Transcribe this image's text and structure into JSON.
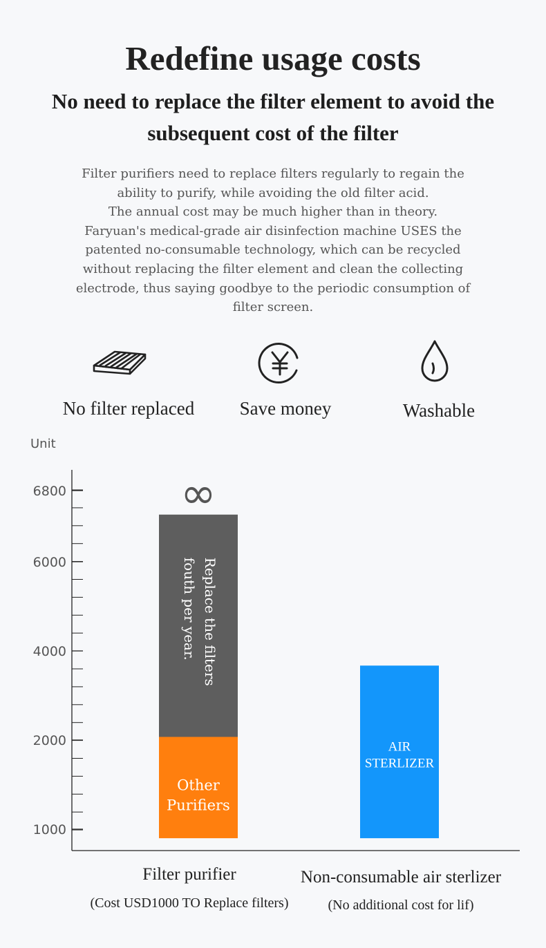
{
  "header": {
    "title": "Redefine usage costs",
    "subtitle_lines": [
      "No need to replace the filter element to avoid the",
      "subsequent cost of the filter"
    ],
    "description_lines": [
      "Filter purifiers need to replace filters regularly to regain the",
      "ability to purify, while avoiding the old filter acid.",
      "The annual cost may be much higher than in theory.",
      "Faryuan's medical-grade air disinfection machine USES the",
      "patented no-consumable technology, which can be recycled",
      "without replacing the filter element and clean the collecting",
      "electrode, thus saying goodbye to the periodic consumption of",
      "filter screen."
    ]
  },
  "features": [
    {
      "label": "No filter replaced",
      "icon": "filter-panel-icon"
    },
    {
      "label": "Save money",
      "icon": "yen-coin-icon"
    },
    {
      "label": "Washable",
      "icon": "water-drop-icon"
    }
  ],
  "chart_data": {
    "type": "bar",
    "ylabel": "Unit",
    "ytick_labels": [
      "1000",
      "2000",
      "4000",
      "6000",
      "6800"
    ],
    "categories": [
      "Filter purifier",
      "Non-consumable air sterlizer"
    ],
    "category_notes": [
      "(Cost USD1000 TO Replace filters)",
      "(No additional cost for lif)"
    ],
    "bars": [
      {
        "category": "Filter purifier",
        "segments": [
          {
            "label_lines": [
              "Other",
              "Purifiers"
            ],
            "from": 770,
            "to": 2070,
            "color": "#ff7f0e"
          },
          {
            "label_lines": [
              "Replace the filters",
              "fouth per year."
            ],
            "from": 2070,
            "to": 6530,
            "color": "#5e5e5e"
          }
        ],
        "top_marker": "∞"
      },
      {
        "category": "Non-consumable air sterlizer",
        "segments": [
          {
            "label_lines": [
              "AIR",
              "STERLIZER"
            ],
            "from": 770,
            "to": 3670,
            "color": "#1396fb"
          }
        ]
      }
    ],
    "grid": false
  }
}
